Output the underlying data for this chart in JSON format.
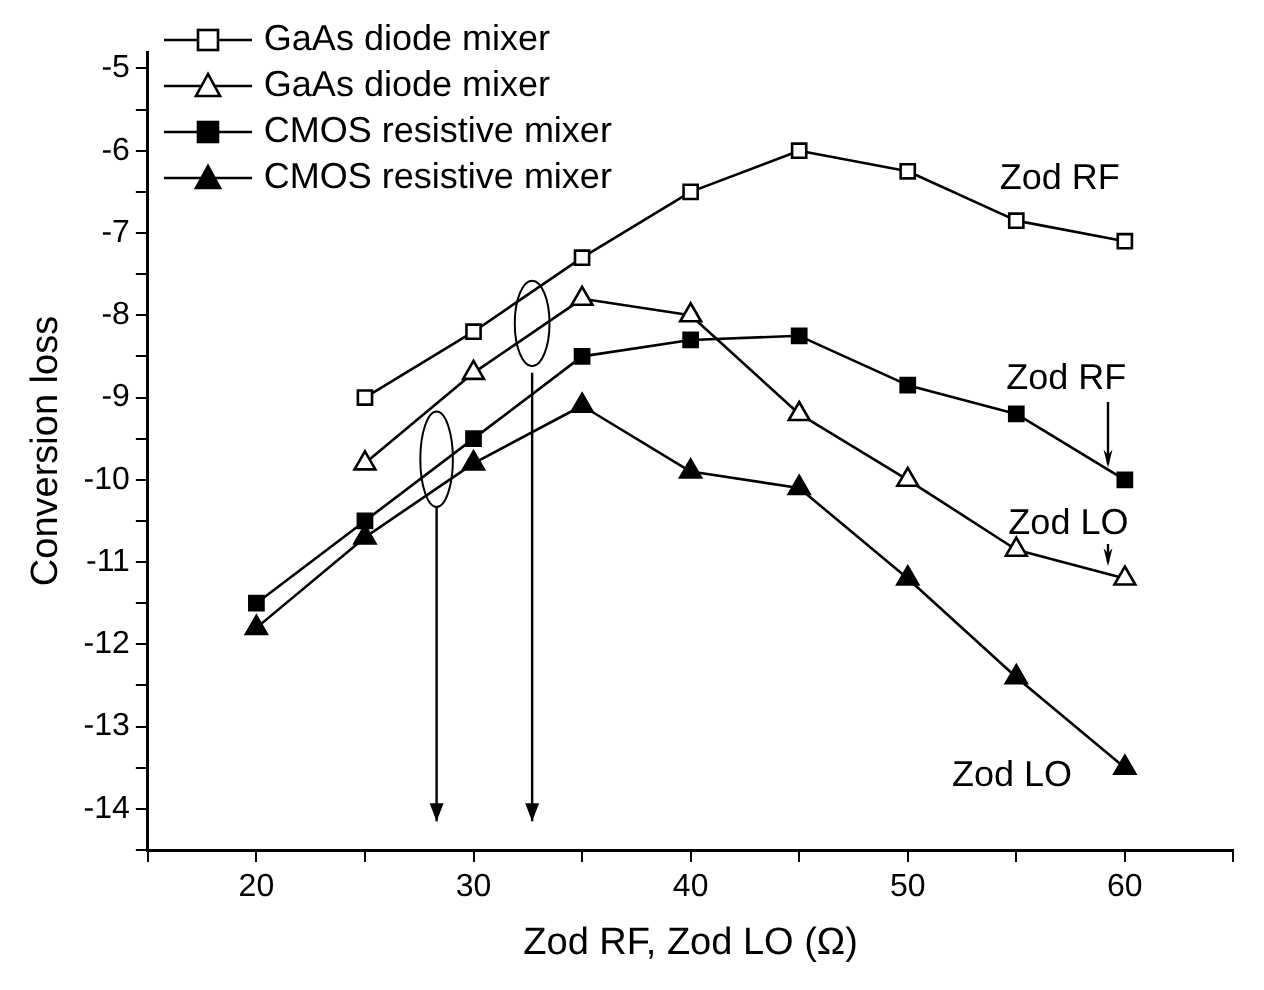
{
  "chart_data": {
    "type": "line",
    "xlabel": "Zod RF, Zod LO (Ω)",
    "ylabel": "Conversion loss",
    "xlim": [
      15,
      65
    ],
    "ylim": [
      -14.5,
      -4.8
    ],
    "xticks": [
      {
        "value": 15,
        "label": null
      },
      20,
      {
        "value": 25,
        "label": null
      },
      30,
      {
        "value": 35,
        "label": null
      },
      40,
      {
        "value": 45,
        "label": null
      },
      50,
      {
        "value": 55,
        "label": null
      },
      60,
      {
        "value": 65,
        "label": null
      }
    ],
    "yticks": [
      {
        "value": -14.5,
        "label": null
      },
      -14,
      {
        "value": -13.5,
        "label": null
      },
      -13,
      {
        "value": -12.5,
        "label": null
      },
      -12,
      {
        "value": -11.5,
        "label": null
      },
      -11,
      {
        "value": -10.5,
        "label": null
      },
      -10,
      {
        "value": -9.5,
        "label": null
      },
      -9,
      {
        "value": -8.5,
        "label": null
      },
      -8,
      {
        "value": -7.5,
        "label": null
      },
      -7,
      {
        "value": -6.5,
        "label": null
      },
      -6,
      {
        "value": -5.5,
        "label": null
      },
      -5
    ],
    "grid": false,
    "legend": "top left",
    "line_style": "solid",
    "series": [
      {
        "name": "GaAs diode mixer",
        "color": "#000000",
        "marker": "square",
        "colors": [
          "#ffffff",
          "#ffffff",
          "#ffffff",
          "#ffffff",
          "#ffffff",
          "#ffffff",
          "#ffffff",
          "#ffffff"
        ],
        "x": [
          25,
          30,
          35,
          40,
          45,
          50,
          55,
          60
        ],
        "values": [
          -9,
          -8.2,
          -7.3,
          -6.5,
          -6,
          -6.25,
          -6.85,
          -7.1
        ]
      },
      {
        "name": "GaAs diode mixer",
        "color": "#000000",
        "marker": "triangle",
        "colors": [
          "#ffffff",
          "#ffffff",
          "#ffffff",
          "#ffffff",
          "#ffffff",
          "#ffffff",
          "#ffffff",
          "#ffffff"
        ],
        "x": [
          25,
          30,
          35,
          40,
          45,
          50,
          55,
          60
        ],
        "values": [
          -9.8,
          -8.7,
          -7.8,
          -8,
          -9.2,
          -10,
          -10.85,
          -11.2
        ]
      },
      {
        "name": "CMOS resistive mixer",
        "color": "#000000",
        "marker": "square",
        "x": [
          20,
          25,
          30,
          35,
          40,
          45,
          50,
          55,
          60
        ],
        "values": [
          -11.5,
          -10.5,
          -9.5,
          -8.5,
          -8.3,
          -8.25,
          -8.85,
          -9.2,
          -10
        ]
      },
      {
        "name": "CMOS resistive mixer",
        "color": "#000000",
        "marker": "triangle",
        "x": [
          20,
          25,
          30,
          35,
          40,
          45,
          50,
          55,
          60
        ],
        "values": [
          -11.8,
          -10.7,
          -9.8,
          -9.1,
          -9.9,
          -10.1,
          -11.2,
          -12.4,
          -13.5
        ]
      }
    ],
    "annotations": [
      "Zod RF",
      "Zod RF",
      "Zod LO",
      "Zod LO"
    ]
  }
}
